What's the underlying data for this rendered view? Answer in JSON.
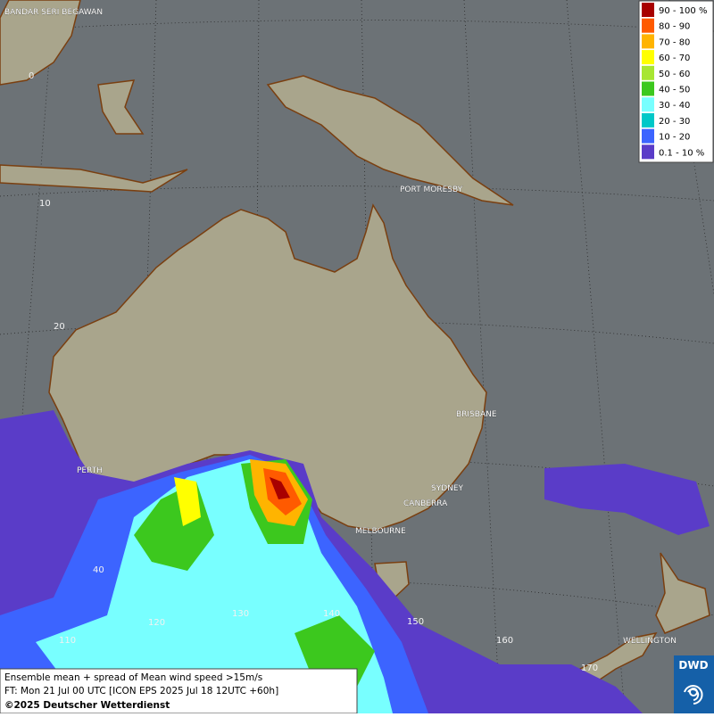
{
  "map": {
    "cities": [
      "BANDAR SERI BEGAWAN",
      "PORT MORESBY",
      "BRISBANE",
      "PERTH",
      "SYDNEY",
      "CANBERRA",
      "MELBOURNE",
      "WELLINGTON"
    ],
    "grid_labels": [
      "0",
      "10",
      "20",
      "40",
      "110",
      "120",
      "130",
      "140",
      "150",
      "160",
      "170"
    ]
  },
  "legend": {
    "entries": [
      {
        "label": "90 - 100 %",
        "color": "#a80000"
      },
      {
        "label": "80 - 90",
        "color": "#ff5a00"
      },
      {
        "label": "70 - 80",
        "color": "#ffb400"
      },
      {
        "label": "60 - 70",
        "color": "#ffff00"
      },
      {
        "label": "50 - 60",
        "color": "#a8e632"
      },
      {
        "label": "40 - 50",
        "color": "#3cc81e"
      },
      {
        "label": "30 - 40",
        "color": "#78ffff"
      },
      {
        "label": "20 - 30",
        "color": "#00c8c8"
      },
      {
        "label": "10 - 20",
        "color": "#3c64ff"
      },
      {
        "label": "0.1 - 10 %",
        "color": "#5a3cc8"
      }
    ]
  },
  "footer": {
    "lines": [
      "Ensemble mean + spread of Mean wind speed >15m/s",
      "FT: Mon 21 Jul 00 UTC [ICON EPS 2025 Jul 18 12UTC +60h]",
      "©2025 Deutscher Wetterdienst"
    ]
  },
  "logo": {
    "text": "DWD"
  }
}
